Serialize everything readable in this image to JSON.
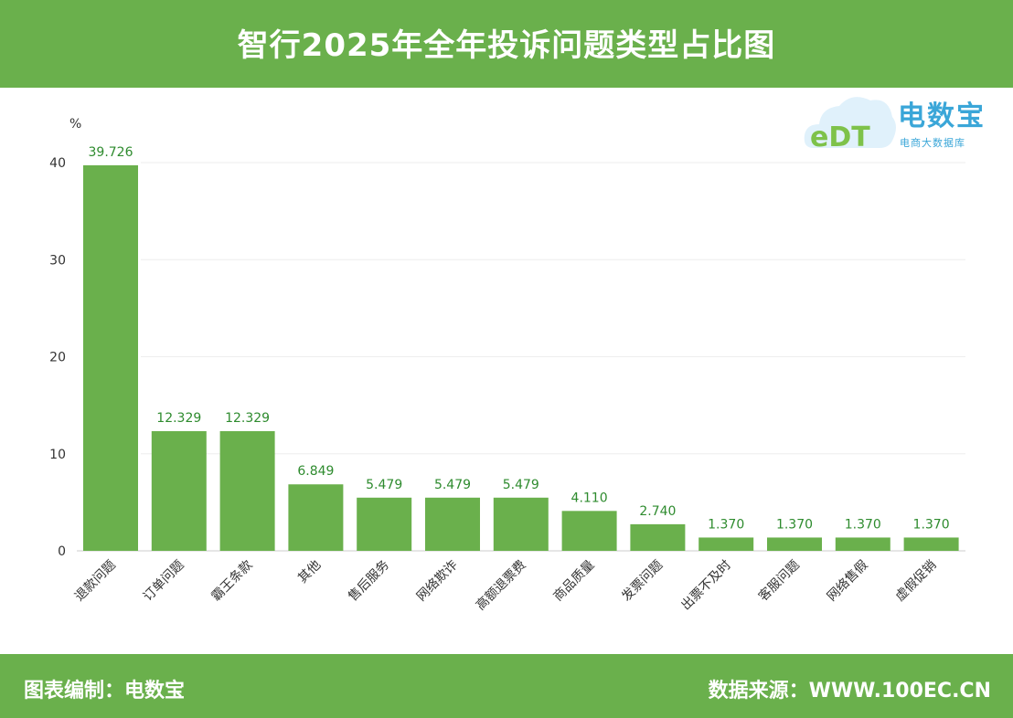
{
  "header": {
    "title": "智行2025年全年投诉问题类型占比图"
  },
  "logo": {
    "brand": "电数宝",
    "sub": "电商大数据库",
    "mark": "eDT"
  },
  "footer": {
    "left": "图表编制：电数宝",
    "right": "数据来源：WWW.100EC.CN"
  },
  "colors": {
    "header_bg": "#6ab04c",
    "bar": "#6ab04c",
    "value_text": "#2e8b2e",
    "logo": "#3aa6d8"
  },
  "chart_data": {
    "type": "bar",
    "title": "智行2025年全年投诉问题类型占比图",
    "ylabel": "%",
    "xlabel": "",
    "ylim": [
      0,
      40
    ],
    "yticks": [
      0,
      10,
      20,
      30,
      40
    ],
    "grid": true,
    "categories": [
      "退款问题",
      "订单问题",
      "霸王条款",
      "其他",
      "售后服务",
      "网络欺诈",
      "高额退票费",
      "商品质量",
      "发票问题",
      "出票不及时",
      "客服问题",
      "网络售假",
      "虚假促销"
    ],
    "values": [
      39.726,
      12.329,
      12.329,
      6.849,
      5.479,
      5.479,
      5.479,
      4.11,
      2.74,
      1.37,
      1.37,
      1.37,
      1.37
    ],
    "value_labels": [
      "39.726",
      "12.329",
      "12.329",
      "6.849",
      "5.479",
      "5.479",
      "5.479",
      "4.110",
      "2.740",
      "1.370",
      "1.370",
      "1.370",
      "1.370"
    ]
  }
}
